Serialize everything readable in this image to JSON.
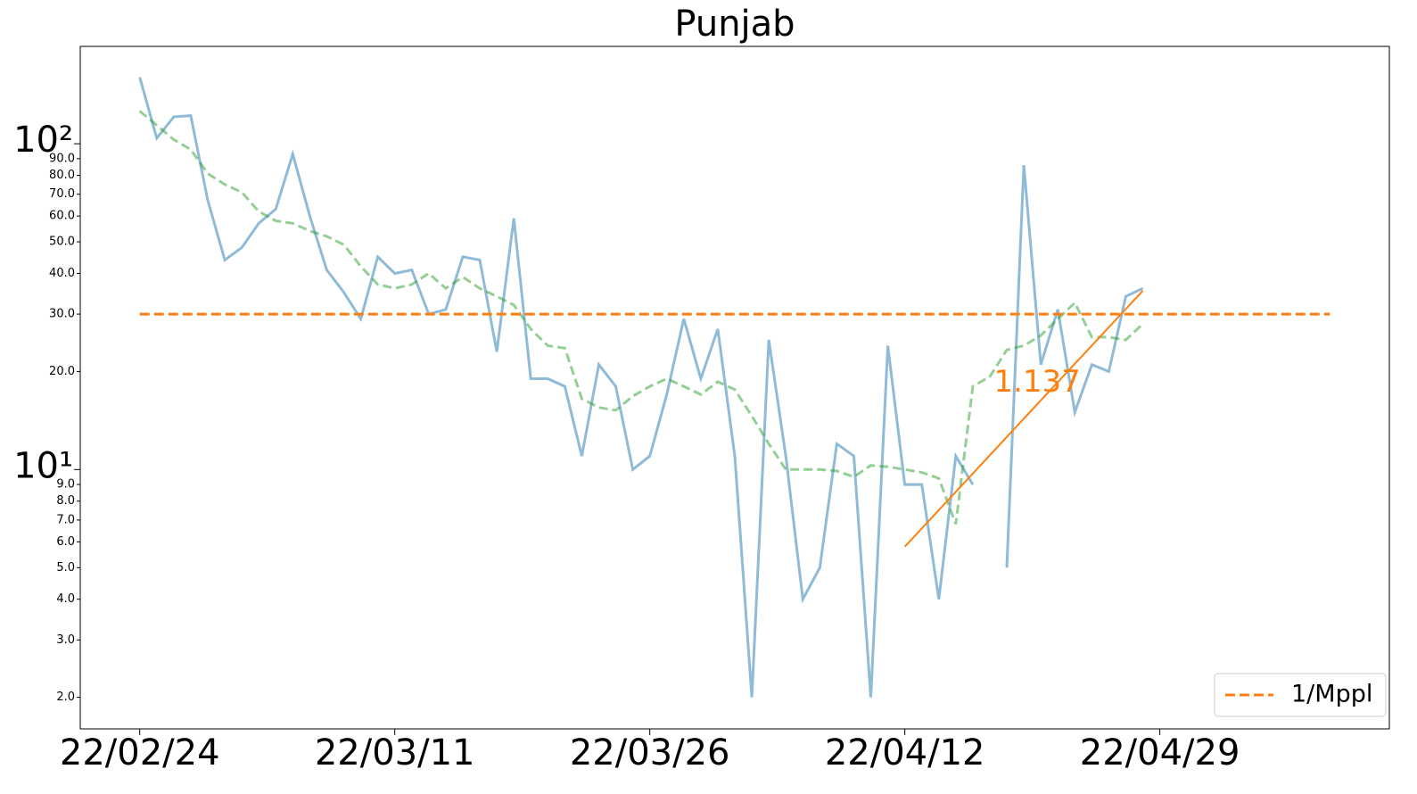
{
  "chart_data": {
    "type": "line",
    "title": "Punjab",
    "log_y": true,
    "x": [
      0,
      1,
      2,
      3,
      4,
      5,
      6,
      7,
      8,
      9,
      10,
      11,
      12,
      13,
      14,
      15,
      16,
      17,
      18,
      19,
      20,
      21,
      22,
      23,
      24,
      25,
      26,
      27,
      28,
      29,
      30,
      31,
      32,
      33,
      34,
      35,
      36,
      37,
      38,
      39,
      40,
      41,
      42,
      43,
      44,
      45,
      46,
      47,
      48,
      49,
      50,
      51,
      52,
      53,
      54,
      55,
      56,
      57,
      58,
      59
    ],
    "series": [
      {
        "color": "#1f77b4",
        "dash": false,
        "values": [
          160,
          104,
          121,
          122,
          67,
          44,
          48,
          57,
          63,
          93,
          60,
          41,
          35,
          29,
          45,
          40,
          41,
          30,
          31,
          45,
          44,
          23,
          59,
          19,
          19,
          18,
          11,
          21,
          18,
          10,
          11,
          17,
          29,
          19,
          27,
          11,
          2,
          25,
          11,
          4,
          5,
          12,
          11,
          2,
          24,
          9,
          9,
          4,
          11,
          9,
          null,
          5,
          86,
          21,
          31,
          15,
          21,
          20,
          34,
          36
        ]
      },
      {
        "color": "#2ca02c",
        "dash": true,
        "values": [
          126,
          114,
          103,
          96,
          81,
          75,
          71,
          62,
          58,
          57,
          54,
          52,
          49,
          42,
          37,
          36,
          37,
          40,
          36,
          39,
          36,
          34,
          32,
          27,
          24,
          23.6,
          16.5,
          15.5,
          15.2,
          16.8,
          18,
          19,
          18,
          17,
          18.6,
          17.6,
          14.6,
          12,
          10,
          10,
          10,
          9.9,
          9.5,
          10.3,
          10.2,
          10,
          9.8,
          9.4,
          6.8,
          18,
          19.3,
          23.3,
          24,
          25.8,
          29,
          32.5,
          25.5,
          25.5,
          25,
          28
        ]
      }
    ],
    "hline": {
      "name": "1/Mppl",
      "color": "#ff7f0e",
      "y": 30,
      "x": [
        0,
        70
      ]
    },
    "fit": {
      "color": "#ff7f0e",
      "label": "1.137",
      "x": [
        45,
        59
      ],
      "values": [
        5.8,
        35.4
      ]
    },
    "xlim": [
      -3.5,
      73.5
    ],
    "ylim": [
      1.6,
      199
    ],
    "xticks": [
      {
        "value": 0,
        "label": "22/02/24"
      },
      {
        "value": 15,
        "label": "22/03/11"
      },
      {
        "value": 30,
        "label": "22/03/26"
      },
      {
        "value": 45,
        "label": "22/04/12"
      },
      {
        "value": 60,
        "label": "22/04/29"
      }
    ],
    "yticks": [
      {
        "value": 2,
        "label": "2.0"
      },
      {
        "value": 3,
        "label": "3.0"
      },
      {
        "value": 4,
        "label": "4.0"
      },
      {
        "value": 5,
        "label": "5.0"
      },
      {
        "value": 6,
        "label": "6.0"
      },
      {
        "value": 7,
        "label": "7.0"
      },
      {
        "value": 8,
        "label": "8.0"
      },
      {
        "value": 9,
        "label": "9.0"
      },
      {
        "value": 10,
        "label": "10¹"
      },
      {
        "value": 20,
        "label": "20.0"
      },
      {
        "value": 30,
        "label": "30.0"
      },
      {
        "value": 40,
        "label": "40.0"
      },
      {
        "value": 50,
        "label": "50.0"
      },
      {
        "value": 60,
        "label": "60.0"
      },
      {
        "value": 70,
        "label": "70.0"
      },
      {
        "value": 80,
        "label": "80.0"
      },
      {
        "value": 90,
        "label": "90.0"
      },
      {
        "value": 100,
        "label": "10²"
      }
    ],
    "legend": "lower right",
    "grid": false
  }
}
